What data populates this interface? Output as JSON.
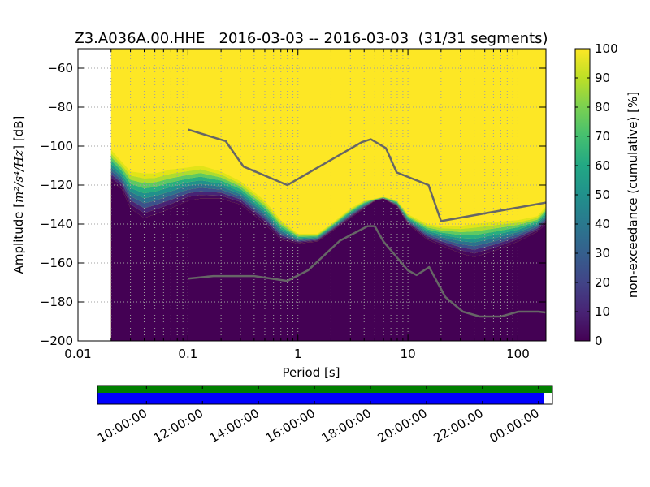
{
  "chart_data": {
    "type": "heatmap",
    "title": "Z3.A036A.00.HHE   2016-03-03 -- 2016-03-03  (31/31 segments)",
    "xlabel": "Period [s]",
    "xscale": "log",
    "xlim": [
      0.01,
      180
    ],
    "xticks": [
      {
        "value": 0.01,
        "label": "0.01"
      },
      {
        "value": 0.1,
        "label": "0.1"
      },
      {
        "value": 1,
        "label": "1"
      },
      {
        "value": 10,
        "label": "10"
      },
      {
        "value": 100,
        "label": "100"
      }
    ],
    "ylabel_prefix": "Amplitude [",
    "ylabel_unit": "m²/s⁴/Hz",
    "ylabel_suffix": "] [dB]",
    "ylim": [
      -200,
      -50
    ],
    "yticks": [
      {
        "value": -60,
        "label": "−60"
      },
      {
        "value": -80,
        "label": "−80"
      },
      {
        "value": -100,
        "label": "−100"
      },
      {
        "value": -120,
        "label": "−120"
      },
      {
        "value": -140,
        "label": "−140"
      },
      {
        "value": -160,
        "label": "−160"
      },
      {
        "value": -180,
        "label": "−180"
      },
      {
        "value": -200,
        "label": "−200"
      }
    ],
    "data_period_start": 0.02,
    "grid": true,
    "percentile_transition": {
      "description": "period vs lower edge (0%) and upper edge (100%) of the cumulative non-exceedance transition in dB",
      "x": [
        0.02,
        0.025,
        0.03,
        0.04,
        0.05,
        0.07,
        0.1,
        0.13,
        0.2,
        0.3,
        0.5,
        0.7,
        1,
        1.5,
        2,
        3,
        4,
        5,
        6,
        8,
        10,
        15,
        20,
        30,
        40,
        60,
        100,
        150,
        180
      ],
      "lower": [
        -118,
        -122,
        -132,
        -137,
        -135,
        -132,
        -128,
        -127,
        -127,
        -130,
        -140,
        -148,
        -150,
        -149,
        -144,
        -137,
        -132,
        -128,
        -127,
        -131,
        -140,
        -148,
        -151,
        -155,
        -157,
        -154,
        -149,
        -144,
        -140
      ],
      "upper": [
        -102,
        -108,
        -113,
        -114,
        -114,
        -112,
        -111,
        -110,
        -113,
        -118,
        -128,
        -138,
        -145,
        -145,
        -140,
        -132,
        -128,
        -127,
        -126,
        -128,
        -135,
        -140,
        -141,
        -141,
        -140,
        -139,
        -138,
        -136,
        -131
      ]
    },
    "series": [
      {
        "role": "high-noise-model",
        "color": "#666666",
        "x": [
          0.1,
          0.22,
          0.32,
          0.8,
          3.8,
          4.6,
          6.3,
          7.9,
          15.4,
          20,
          180
        ],
        "y": [
          -91.5,
          -97.4,
          -110.5,
          -120,
          -98,
          -96.5,
          -101,
          -113.5,
          -120,
          -138.5,
          -129
        ]
      },
      {
        "role": "low-noise-model",
        "color": "#666666",
        "x": [
          0.1,
          0.17,
          0.4,
          0.8,
          1.24,
          2.4,
          4.3,
          5,
          6,
          10,
          12,
          15.6,
          21.9,
          31.6,
          45,
          70,
          101,
          154,
          178
        ],
        "y": [
          -168,
          -166.7,
          -166.7,
          -169.2,
          -163.7,
          -148.6,
          -141.1,
          -141.1,
          -149,
          -163.8,
          -166.2,
          -162.1,
          -177.5,
          -185,
          -187.5,
          -187.5,
          -185,
          -185,
          -185.4
        ]
      }
    ],
    "colorbar": {
      "label": "non-exceedance (cumulative) [%]",
      "range": [
        0,
        100
      ],
      "ticks": [
        "0",
        "10",
        "20",
        "30",
        "40",
        "50",
        "60",
        "70",
        "80",
        "90",
        "100"
      ],
      "colormap": "viridis"
    },
    "time_coverage": {
      "ticks": [
        "10:00:00",
        "12:00:00",
        "14:00:00",
        "16:00:00",
        "18:00:00",
        "20:00:00",
        "22:00:00",
        "00:00:00"
      ],
      "tick_hours": [
        10,
        12,
        14,
        16,
        18,
        20,
        22,
        24
      ],
      "range_hours": [
        8.25,
        24.5
      ],
      "data_bar": {
        "color": "#008000",
        "start_hour": 8.25,
        "end_hour": 24.5
      },
      "psd_bar": {
        "color": "#0000ff",
        "start_hour": 8.25,
        "end_hour": 24.2
      }
    }
  }
}
